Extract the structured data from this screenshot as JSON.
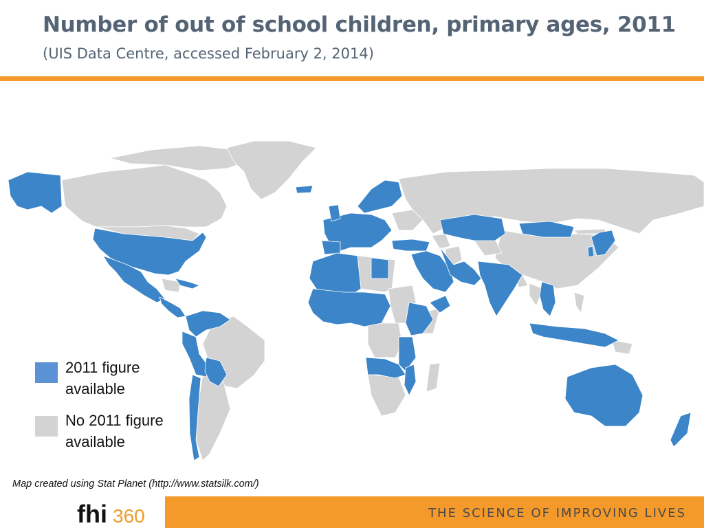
{
  "header": {
    "title": "Number of out of school children, primary ages, 2011",
    "subtitle": "(UIS Data Centre, accessed February 2, 2014)"
  },
  "colors": {
    "available": "#3b85c8",
    "no_data": "#d3d3d3",
    "ocean": "#ffffff",
    "accent": "#f39a2b"
  },
  "legend": {
    "items": [
      {
        "label": "2011 figure available",
        "color": "#5b92d6"
      },
      {
        "label": "No 2011 figure available",
        "color": "#d3d3d3"
      }
    ]
  },
  "credit": "Map created using Stat Planet (http://www.statsilk.com/)",
  "footer": {
    "logo_text": "fhi360",
    "tagline": "THE SCIENCE OF IMPROVING LIVES"
  }
}
